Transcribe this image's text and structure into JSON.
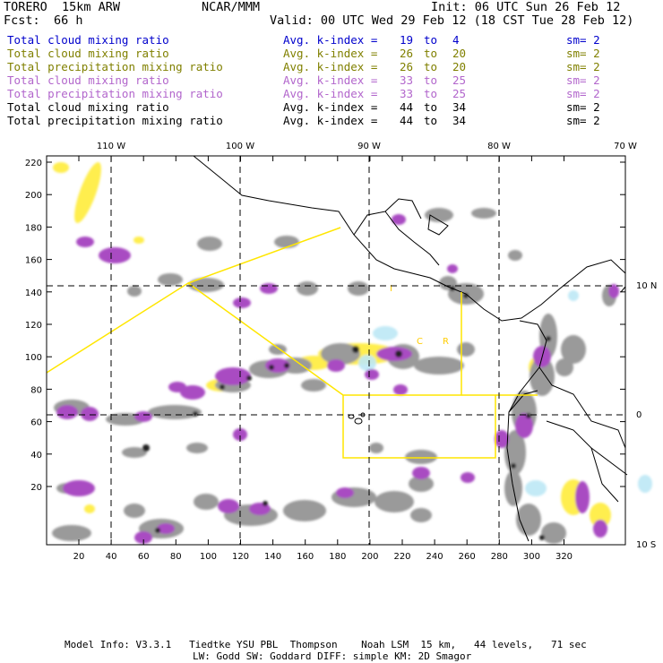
{
  "header": {
    "model": "TORERO  15km ARW",
    "org": "NCAR/MMM",
    "init": "Init: 06 UTC Sun 26 Feb 12",
    "fcst_label": "Fcst:",
    "fcst_value": "66 h",
    "valid": "Valid: 00 UTC Wed 29 Feb 12 (18 CST Tue 28 Feb 12)"
  },
  "legend": [
    {
      "field": "Total cloud mixing ratio",
      "avg": "Avg. k-index =",
      "k1": "19",
      "to": "to",
      "k2": "4",
      "sm": "sm= 2",
      "color": "#0000cc"
    },
    {
      "field": "Total cloud mixing ratio",
      "avg": "Avg. k-index =",
      "k1": "26",
      "to": "to",
      "k2": "20",
      "sm": "sm= 2",
      "color": "#808000"
    },
    {
      "field": "Total precipitation mixing ratio",
      "avg": "Avg. k-index =",
      "k1": "26",
      "to": "to",
      "k2": "20",
      "sm": "sm= 2",
      "color": "#808000"
    },
    {
      "field": "Total cloud mixing ratio",
      "avg": "Avg. k-index =",
      "k1": "33",
      "to": "to",
      "k2": "25",
      "sm": "sm= 2",
      "color": "#b266cc"
    },
    {
      "field": "Total precipitation mixing ratio",
      "avg": "Avg. k-index =",
      "k1": "33",
      "to": "to",
      "k2": "25",
      "sm": "sm= 2",
      "color": "#b266cc"
    },
    {
      "field": "Total cloud mixing ratio",
      "avg": "Avg. k-index =",
      "k1": "44",
      "to": "to",
      "k2": "34",
      "sm": "sm= 2",
      "color": "#000000"
    },
    {
      "field": "Total precipitation mixing ratio",
      "avg": "Avg. k-index =",
      "k1": "44",
      "to": "to",
      "k2": "34",
      "sm": "sm= 2",
      "color": "#000000"
    }
  ],
  "map": {
    "lon_labels": [
      "110 W",
      "100 W",
      "90 W",
      "80 W",
      "70 W"
    ],
    "lat_labels": [
      "10 N",
      "0",
      "10 S"
    ],
    "y_ticks": [
      "220",
      "200",
      "180",
      "160",
      "140",
      "120",
      "100",
      "80",
      "60",
      "40",
      "20"
    ],
    "x_ticks": [
      "20",
      "40",
      "60",
      "80",
      "100",
      "120",
      "140",
      "160",
      "180",
      "200",
      "220",
      "240",
      "260",
      "280",
      "300",
      "320"
    ],
    "box_labels": [
      "I",
      "C",
      "R"
    ]
  },
  "footer": {
    "line1": "Model Info: V3.3.1   Tiedtke YSU PBL  Thompson    Noah LSM  15 km,   44 levels,   71 sec",
    "line2": "LW: Godd SW: Goddard DIFF: simple KM: 2D Smagor"
  }
}
